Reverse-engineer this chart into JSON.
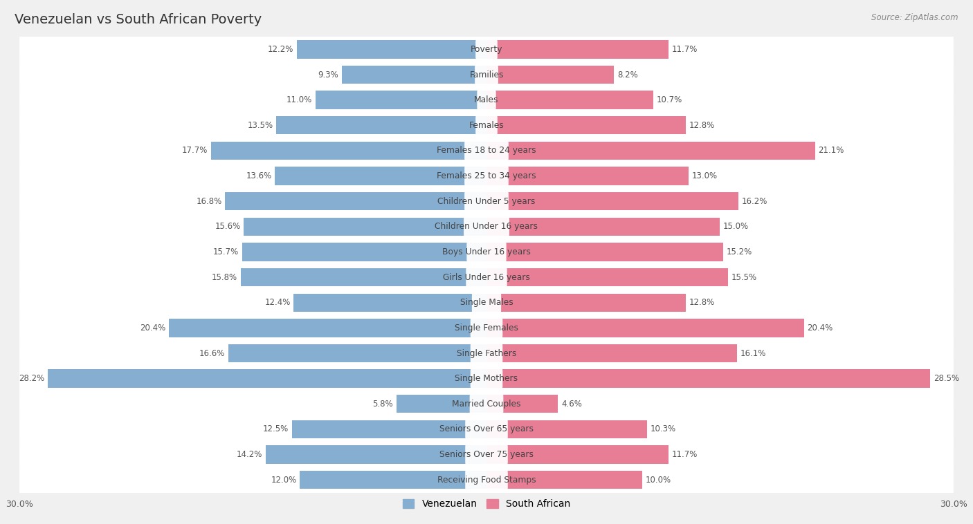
{
  "title": "Venezuelan vs South African Poverty",
  "source": "Source: ZipAtlas.com",
  "categories": [
    "Poverty",
    "Families",
    "Males",
    "Females",
    "Females 18 to 24 years",
    "Females 25 to 34 years",
    "Children Under 5 years",
    "Children Under 16 years",
    "Boys Under 16 years",
    "Girls Under 16 years",
    "Single Males",
    "Single Females",
    "Single Fathers",
    "Single Mothers",
    "Married Couples",
    "Seniors Over 65 years",
    "Seniors Over 75 years",
    "Receiving Food Stamps"
  ],
  "venezuelan": [
    12.2,
    9.3,
    11.0,
    13.5,
    17.7,
    13.6,
    16.8,
    15.6,
    15.7,
    15.8,
    12.4,
    20.4,
    16.6,
    28.2,
    5.8,
    12.5,
    14.2,
    12.0
  ],
  "south_african": [
    11.7,
    8.2,
    10.7,
    12.8,
    21.1,
    13.0,
    16.2,
    15.0,
    15.2,
    15.5,
    12.8,
    20.4,
    16.1,
    28.5,
    4.6,
    10.3,
    11.7,
    10.0
  ],
  "venezuelan_color": "#85aed0",
  "south_african_color": "#e87d96",
  "row_bg_color": "#e8e8e8",
  "bar_bg_color": "#dcdcdc",
  "background_color": "#f0f0f0",
  "axis_max": 30.0,
  "bar_height": 0.72,
  "title_fontsize": 14,
  "label_fontsize": 8.8,
  "value_fontsize": 8.5
}
